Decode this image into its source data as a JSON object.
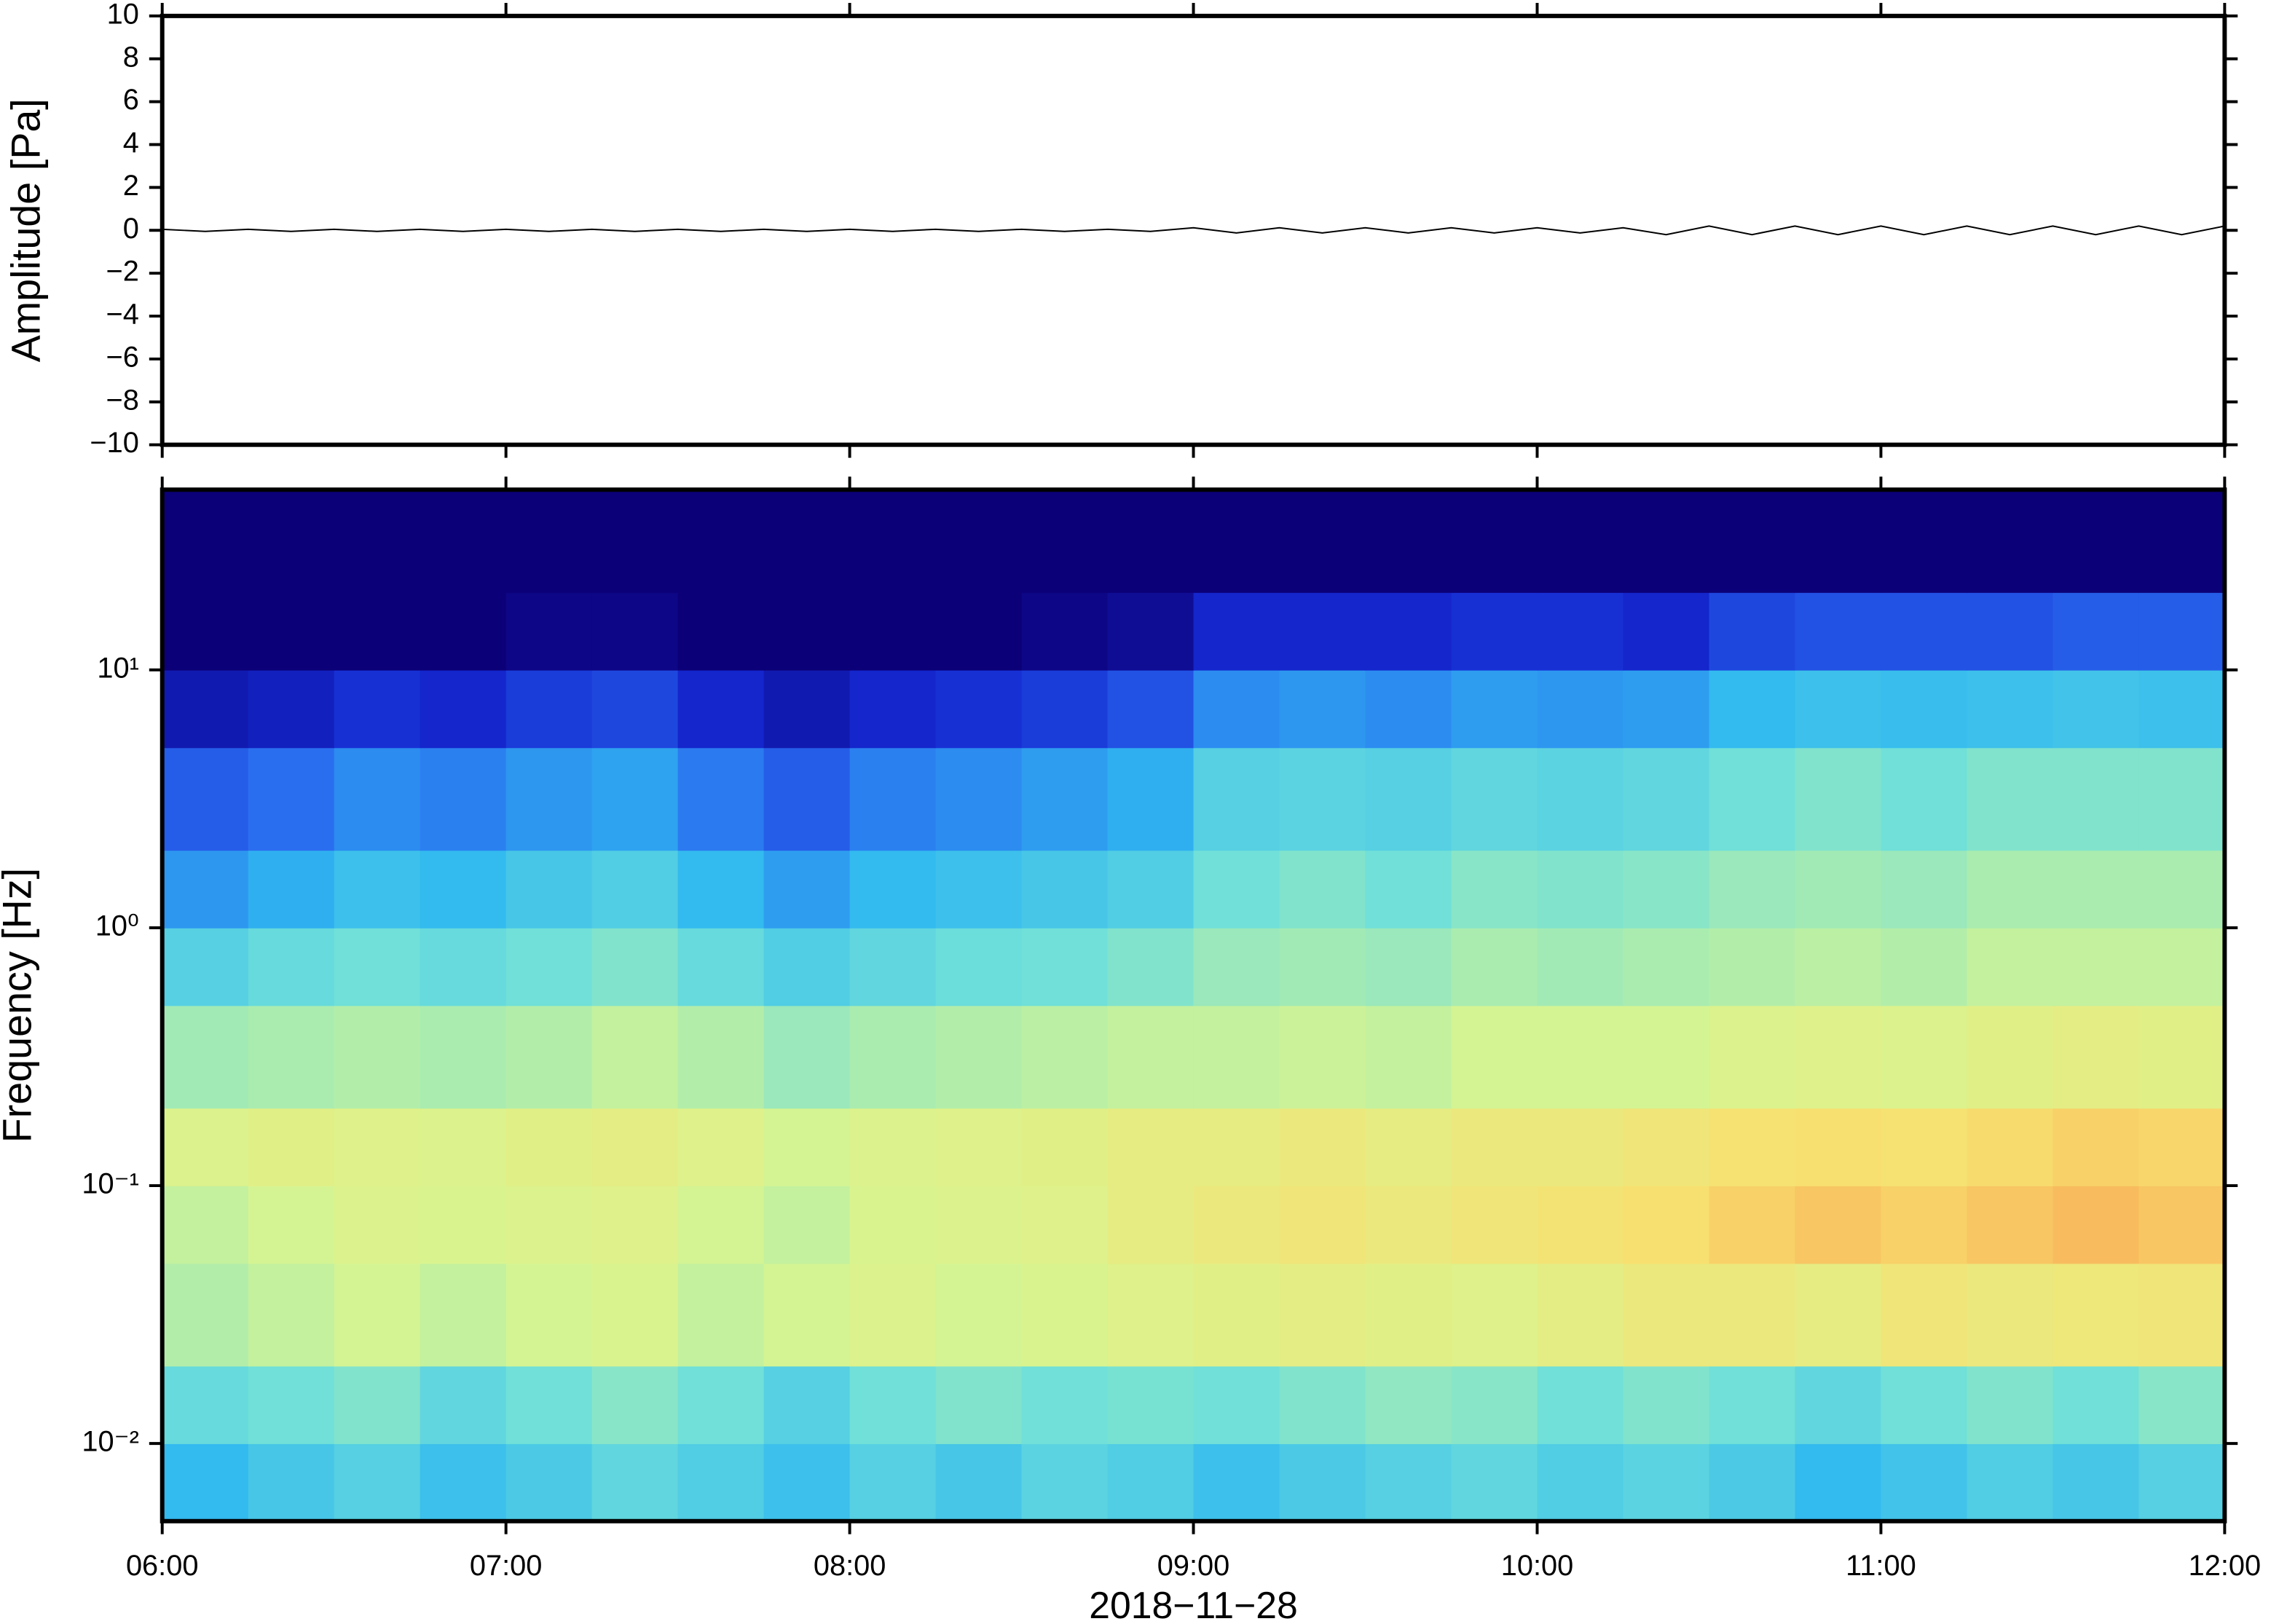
{
  "chart_data": [
    {
      "type": "line",
      "ylabel": "Amplitude [Pa]",
      "color": "#000000",
      "xlim": [
        6,
        12
      ],
      "xticks": [
        6,
        7,
        8,
        9,
        10,
        11,
        12
      ],
      "ylim": [
        -10,
        10
      ],
      "yticks": [
        {
          "value": -10,
          "label": "−10"
        },
        {
          "value": -8,
          "label": "−8"
        },
        {
          "value": -6,
          "label": "−6"
        },
        {
          "value": -4,
          "label": "−4"
        },
        {
          "value": -2,
          "label": "−2"
        },
        0,
        2,
        4,
        6,
        8,
        10
      ],
      "x": [
        6,
        6.125,
        6.25,
        6.375,
        6.5,
        6.625,
        6.75,
        6.875,
        7,
        7.125,
        7.25,
        7.375,
        7.5,
        7.625,
        7.75,
        7.875,
        8,
        8.125,
        8.25,
        8.375,
        8.5,
        8.625,
        8.75,
        8.875,
        9,
        9.125,
        9.25,
        9.375,
        9.5,
        9.625,
        9.75,
        9.875,
        10,
        10.125,
        10.25,
        10.375,
        10.5,
        10.625,
        10.75,
        10.875,
        11,
        11.125,
        11.25,
        11.375,
        11.5,
        11.625,
        11.75,
        11.875,
        12
      ],
      "values": [
        0.05,
        -0.05,
        0.05,
        -0.05,
        0.05,
        -0.05,
        0.05,
        -0.05,
        0.05,
        -0.05,
        0.05,
        -0.05,
        0.05,
        -0.05,
        0.05,
        -0.05,
        0.05,
        -0.05,
        0.05,
        -0.05,
        0.05,
        -0.05,
        0.05,
        -0.05,
        0.12,
        -0.12,
        0.12,
        -0.12,
        0.12,
        -0.12,
        0.12,
        -0.12,
        0.12,
        -0.12,
        0.12,
        -0.2,
        0.2,
        -0.2,
        0.2,
        -0.2,
        0.2,
        -0.2,
        0.2,
        -0.2,
        0.2,
        -0.2,
        0.2,
        -0.2,
        0.2
      ]
    },
    {
      "type": "heatmap",
      "ylabel": "Frequency [Hz]",
      "xlabel": "2018−11−28",
      "ylog": true,
      "xlim": [
        6,
        12
      ],
      "xticks": [
        {
          "value": 6,
          "label": "06:00"
        },
        {
          "value": 7,
          "label": "07:00"
        },
        {
          "value": 8,
          "label": "08:00"
        },
        {
          "value": 9,
          "label": "09:00"
        },
        {
          "value": 10,
          "label": "10:00"
        },
        {
          "value": 11,
          "label": "11:00"
        },
        {
          "value": 12,
          "label": "12:00"
        }
      ],
      "ylim": [
        0.005,
        50
      ],
      "yticks": [
        {
          "value": 0.01,
          "label": "10⁻²"
        },
        {
          "value": 0.1,
          "label": "10⁻¹"
        },
        {
          "value": 1,
          "label": "10⁰"
        },
        {
          "value": 10,
          "label": "10¹"
        }
      ],
      "zlim": [
        0,
        1
      ],
      "colormap": [
        "#0c0078",
        "#1428d0",
        "#2a6ef0",
        "#30b8f0",
        "#70e0d8",
        "#d8f590",
        "#f8e070",
        "#f8a050",
        "#e03020"
      ],
      "xbins": [
        6,
        6.25,
        6.5,
        6.75,
        7,
        7.25,
        7.5,
        7.75,
        8,
        8.25,
        8.5,
        8.75,
        9,
        9.25,
        9.5,
        9.75,
        10,
        10.25,
        10.5,
        10.75,
        11,
        11.25,
        11.5,
        11.75,
        12
      ],
      "ybins": [
        0.005,
        0.01,
        0.02,
        0.05,
        0.1,
        0.2,
        0.5,
        1,
        2,
        5,
        10,
        20,
        50
      ],
      "z": [
        [
          0.38,
          0.42,
          0.45,
          0.4,
          0.43,
          0.47,
          0.44,
          0.4,
          0.45,
          0.42,
          0.46,
          0.44,
          0.4,
          0.43,
          0.45,
          0.47,
          0.44,
          0.46,
          0.43,
          0.38,
          0.41,
          0.44,
          0.42,
          0.45
        ],
        [
          0.48,
          0.5,
          0.52,
          0.47,
          0.5,
          0.53,
          0.5,
          0.45,
          0.5,
          0.52,
          0.5,
          0.51,
          0.5,
          0.52,
          0.54,
          0.53,
          0.5,
          0.52,
          0.5,
          0.47,
          0.5,
          0.52,
          0.5,
          0.53
        ],
        [
          0.58,
          0.6,
          0.62,
          0.6,
          0.62,
          0.63,
          0.6,
          0.62,
          0.64,
          0.62,
          0.63,
          0.65,
          0.66,
          0.67,
          0.66,
          0.65,
          0.67,
          0.7,
          0.7,
          0.68,
          0.72,
          0.7,
          0.71,
          0.72
        ],
        [
          0.6,
          0.62,
          0.64,
          0.63,
          0.64,
          0.65,
          0.62,
          0.6,
          0.63,
          0.64,
          0.65,
          0.68,
          0.7,
          0.72,
          0.7,
          0.72,
          0.73,
          0.75,
          0.78,
          0.8,
          0.78,
          0.8,
          0.82,
          0.8
        ],
        [
          0.64,
          0.66,
          0.65,
          0.64,
          0.66,
          0.67,
          0.65,
          0.62,
          0.64,
          0.65,
          0.66,
          0.68,
          0.68,
          0.7,
          0.68,
          0.7,
          0.7,
          0.72,
          0.74,
          0.75,
          0.74,
          0.76,
          0.78,
          0.77
        ],
        [
          0.56,
          0.57,
          0.58,
          0.57,
          0.58,
          0.6,
          0.58,
          0.55,
          0.57,
          0.58,
          0.59,
          0.6,
          0.6,
          0.61,
          0.6,
          0.62,
          0.62,
          0.62,
          0.64,
          0.65,
          0.64,
          0.66,
          0.67,
          0.66
        ],
        [
          0.45,
          0.48,
          0.5,
          0.48,
          0.5,
          0.52,
          0.48,
          0.44,
          0.47,
          0.49,
          0.5,
          0.52,
          0.55,
          0.56,
          0.55,
          0.57,
          0.56,
          0.57,
          0.58,
          0.59,
          0.58,
          0.6,
          0.6,
          0.6
        ],
        [
          0.32,
          0.36,
          0.4,
          0.38,
          0.42,
          0.44,
          0.38,
          0.33,
          0.38,
          0.4,
          0.42,
          0.44,
          0.5,
          0.52,
          0.5,
          0.53,
          0.52,
          0.53,
          0.55,
          0.56,
          0.55,
          0.57,
          0.57,
          0.57
        ],
        [
          0.22,
          0.25,
          0.3,
          0.28,
          0.32,
          0.34,
          0.27,
          0.22,
          0.28,
          0.3,
          0.33,
          0.36,
          0.45,
          0.46,
          0.45,
          0.47,
          0.46,
          0.47,
          0.5,
          0.52,
          0.5,
          0.52,
          0.52,
          0.52
        ],
        [
          0.08,
          0.1,
          0.14,
          0.12,
          0.16,
          0.18,
          0.12,
          0.08,
          0.12,
          0.14,
          0.16,
          0.2,
          0.3,
          0.32,
          0.3,
          0.33,
          0.32,
          0.33,
          0.38,
          0.4,
          0.39,
          0.4,
          0.41,
          0.4
        ],
        [
          0,
          0,
          0,
          0,
          0.02,
          0.02,
          0,
          0,
          0,
          0,
          0.02,
          0.04,
          0.12,
          0.12,
          0.12,
          0.14,
          0.14,
          0.12,
          0.18,
          0.2,
          0.2,
          0.2,
          0.22,
          0.22
        ],
        [
          0,
          0,
          0,
          0,
          0,
          0,
          0,
          0,
          0,
          0,
          0,
          0,
          0,
          0,
          0,
          0,
          0,
          0,
          0,
          0,
          0,
          0,
          0,
          0
        ]
      ]
    }
  ]
}
